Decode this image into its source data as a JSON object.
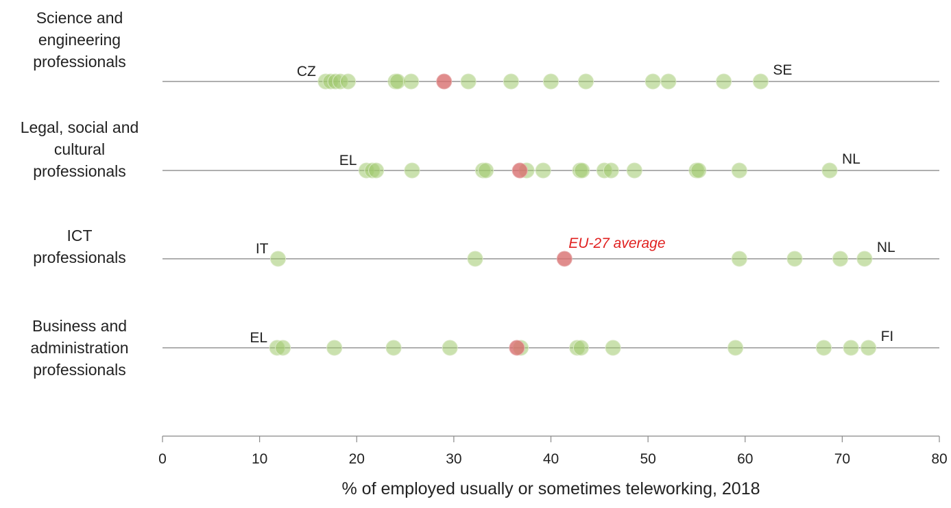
{
  "chart_data": {
    "type": "scatter",
    "title": "",
    "xlabel": "% of employed usually or sometimes teleworking, 2018",
    "ylabel": "",
    "xlim": [
      0,
      80
    ],
    "x_ticks": [
      "0",
      "10",
      "20",
      "30",
      "40",
      "50",
      "60",
      "70",
      "80"
    ],
    "grid": false,
    "colors": {
      "country": "#9fc96b",
      "country_faded": "#c6dca5",
      "eu_average": "#d86f6f",
      "axis": "#888888",
      "annotation_red": "#e0201f"
    },
    "categories": [
      {
        "name": "Science and engineering professionals",
        "countries": [
          16.8,
          17.3,
          17.8,
          18.3,
          19.1,
          24.0,
          24.2,
          25.6,
          31.5,
          35.9,
          40.0,
          43.6,
          50.5,
          52.1,
          57.8,
          61.6
        ],
        "eu_average": 29.0,
        "min_label": "CZ",
        "max_label": "SE"
      },
      {
        "name": "Legal, social and cultural professionals",
        "countries": [
          21.0,
          21.6,
          22.0,
          25.7,
          33.0,
          33.3,
          37.5,
          39.2,
          43.0,
          43.2,
          45.5,
          46.2,
          48.6,
          55.0,
          55.2,
          59.4,
          68.7
        ],
        "eu_average": 36.8,
        "min_label": "EL",
        "max_label": "NL"
      },
      {
        "name": "ICT professionals",
        "countries": [
          11.9,
          32.2,
          59.4,
          65.1,
          69.8,
          72.3
        ],
        "eu_average": 41.4,
        "min_label": "IT",
        "max_label": "NL",
        "annotation": "EU-27 average"
      },
      {
        "name": "Business and administration professionals",
        "countries": [
          11.8,
          12.4,
          17.7,
          23.8,
          29.6,
          36.9,
          42.7,
          43.1,
          46.4,
          59.0,
          68.1,
          70.9,
          72.7
        ],
        "eu_average": 36.5,
        "min_label": "EL",
        "max_label": "FI"
      }
    ]
  }
}
